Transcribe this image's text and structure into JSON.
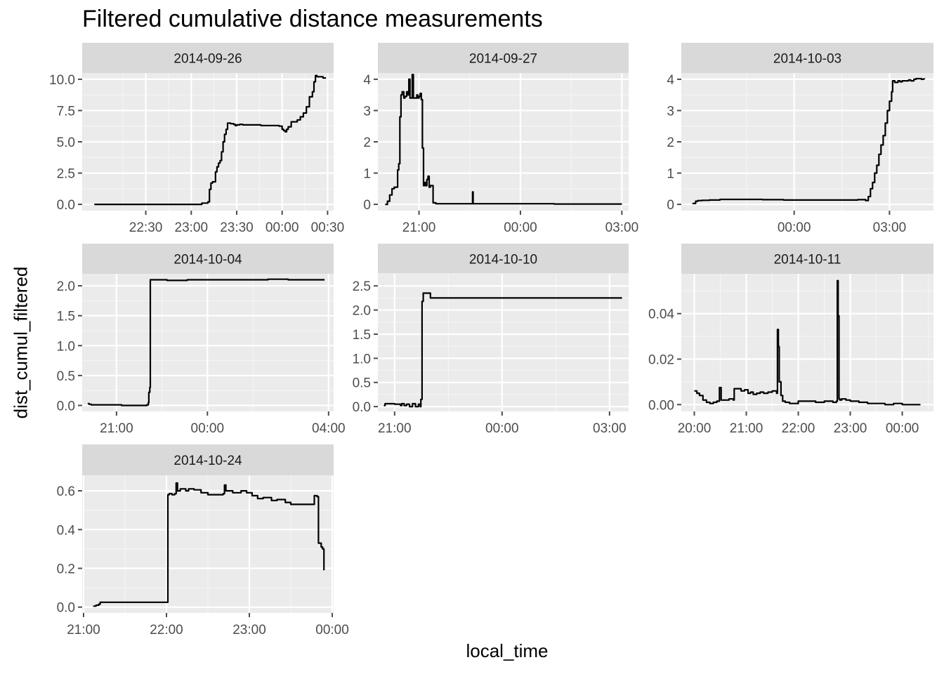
{
  "title": "Filtered cumulative distance measurements",
  "xlabel": "local_time",
  "ylabel": "dist_cumul_filtered",
  "colors": {
    "panel_bg": "#ebebeb",
    "strip_bg": "#d9d9d9",
    "grid_major": "#ffffff",
    "grid_minor": "#f5f5f5",
    "line": "#000000",
    "tick": "#4d4d4d"
  },
  "chart_data": [
    {
      "type": "line",
      "panel": "2014-09-26",
      "x_unit": "minutes since 00:00 of the facet day",
      "x_ticks": [
        {
          "v": 1350,
          "label": "22:30"
        },
        {
          "v": 1380,
          "label": "23:00"
        },
        {
          "v": 1410,
          "label": "23:30"
        },
        {
          "v": 1440,
          "label": "00:00"
        },
        {
          "v": 1470,
          "label": "00:30"
        }
      ],
      "y_ticks": [
        {
          "v": 0,
          "label": "0.0"
        },
        {
          "v": 2.5,
          "label": "2.5"
        },
        {
          "v": 5,
          "label": "5.0"
        },
        {
          "v": 7.5,
          "label": "7.5"
        },
        {
          "v": 10,
          "label": "10.0"
        }
      ],
      "xlim": [
        1308,
        1474
      ],
      "ylim": [
        -0.5,
        10.5
      ],
      "x": [
        1316,
        1382,
        1387,
        1391,
        1392,
        1393,
        1394,
        1396,
        1397,
        1398,
        1399,
        1400,
        1401,
        1402,
        1403,
        1404,
        1405,
        1406,
        1407,
        1408,
        1409,
        1410,
        1412,
        1414,
        1418,
        1422,
        1426,
        1430,
        1434,
        1438,
        1440,
        1441,
        1442,
        1443,
        1444,
        1445,
        1446,
        1448,
        1450,
        1452,
        1454,
        1456,
        1458,
        1460,
        1461,
        1462,
        1463,
        1465,
        1467,
        1469
      ],
      "y": [
        0.0,
        0.0,
        0.1,
        0.2,
        1.2,
        1.7,
        1.8,
        2.6,
        3.0,
        3.3,
        3.5,
        4.2,
        5.0,
        5.6,
        6.0,
        6.5,
        6.5,
        6.45,
        6.45,
        6.4,
        6.3,
        6.35,
        6.4,
        6.35,
        6.35,
        6.35,
        6.3,
        6.3,
        6.3,
        6.25,
        6.0,
        5.9,
        5.8,
        6.0,
        6.2,
        6.2,
        6.6,
        6.6,
        6.75,
        7.0,
        7.3,
        7.8,
        8.6,
        9.0,
        9.8,
        10.3,
        10.2,
        10.2,
        10.1,
        10.1
      ]
    },
    {
      "type": "line",
      "panel": "2014-09-27",
      "x_unit": "minutes since 00:00 of the facet day",
      "x_ticks": [
        {
          "v": 1260,
          "label": "21:00"
        },
        {
          "v": 1440,
          "label": "00:00"
        },
        {
          "v": 1620,
          "label": "03:00"
        }
      ],
      "y_ticks": [
        {
          "v": 0,
          "label": "0"
        },
        {
          "v": 1,
          "label": "1"
        },
        {
          "v": 2,
          "label": "2"
        },
        {
          "v": 3,
          "label": "3"
        },
        {
          "v": 4,
          "label": "4"
        }
      ],
      "xlim": [
        1187,
        1632
      ],
      "ylim": [
        -0.2,
        4.2
      ],
      "x": [
        1200,
        1204,
        1208,
        1212,
        1216,
        1220,
        1222,
        1224,
        1226,
        1228,
        1230,
        1233,
        1235,
        1238,
        1240,
        1242,
        1244,
        1246,
        1248,
        1250,
        1253,
        1256,
        1258,
        1260,
        1262,
        1264,
        1266,
        1268,
        1270,
        1272,
        1274,
        1276,
        1278,
        1280,
        1285,
        1290,
        1320,
        1354,
        1355,
        1356,
        1400,
        1500,
        1620
      ],
      "y": [
        0.0,
        0.1,
        0.3,
        0.5,
        0.55,
        0.55,
        1.1,
        1.3,
        2.8,
        3.5,
        3.6,
        3.4,
        3.45,
        3.6,
        3.5,
        4.0,
        3.4,
        3.4,
        4.15,
        3.4,
        3.4,
        3.5,
        3.4,
        3.45,
        3.55,
        3.35,
        1.8,
        0.6,
        0.7,
        0.6,
        0.8,
        0.9,
        0.55,
        0.6,
        0.05,
        0.02,
        0.02,
        0.02,
        0.4,
        0.02,
        0.02,
        0.01,
        0.01
      ]
    },
    {
      "type": "line",
      "panel": "2014-10-03",
      "x_unit": "minutes since 00:00 of the facet day",
      "x_ticks": [
        {
          "v": 1440,
          "label": "00:00"
        },
        {
          "v": 1620,
          "label": "03:00"
        }
      ],
      "y_ticks": [
        {
          "v": 0,
          "label": "0"
        },
        {
          "v": 1,
          "label": "1"
        },
        {
          "v": 2,
          "label": "2"
        },
        {
          "v": 3,
          "label": "3"
        },
        {
          "v": 4,
          "label": "4"
        }
      ],
      "xlim": [
        1227,
        1703
      ],
      "ylim": [
        -0.2,
        4.2
      ],
      "x": [
        1248,
        1254,
        1258,
        1262,
        1266,
        1270,
        1280,
        1300,
        1320,
        1340,
        1380,
        1420,
        1460,
        1500,
        1540,
        1560,
        1570,
        1575,
        1580,
        1584,
        1588,
        1592,
        1596,
        1600,
        1604,
        1608,
        1612,
        1616,
        1620,
        1624,
        1626,
        1630,
        1636,
        1640,
        1644,
        1650,
        1656,
        1660,
        1666,
        1670,
        1675,
        1680,
        1684,
        1686
      ],
      "y": [
        0.03,
        0.1,
        0.12,
        0.12,
        0.13,
        0.13,
        0.14,
        0.16,
        0.16,
        0.16,
        0.15,
        0.14,
        0.14,
        0.14,
        0.14,
        0.15,
        0.15,
        0.12,
        0.25,
        0.5,
        0.7,
        1.0,
        1.25,
        1.6,
        1.9,
        2.2,
        2.6,
        3.0,
        3.3,
        3.6,
        3.95,
        3.9,
        3.95,
        3.92,
        3.95,
        3.95,
        3.98,
        3.95,
        4.0,
        4.02,
        4.02,
        4.0,
        4.01,
        4.0
      ]
    },
    {
      "type": "line",
      "panel": "2014-10-04",
      "x_unit": "minutes since 00:00 of the facet day",
      "x_ticks": [
        {
          "v": 1260,
          "label": "21:00"
        },
        {
          "v": 1440,
          "label": "00:00"
        },
        {
          "v": 1680,
          "label": "04:00"
        }
      ],
      "y_ticks": [
        {
          "v": 0,
          "label": "0.0"
        },
        {
          "v": 0.5,
          "label": "0.5"
        },
        {
          "v": 1,
          "label": "1.0"
        },
        {
          "v": 1.5,
          "label": "1.5"
        },
        {
          "v": 2,
          "label": "2.0"
        }
      ],
      "xlim": [
        1192,
        1690
      ],
      "ylim": [
        -0.1,
        2.2
      ],
      "x": [
        1203,
        1206,
        1210,
        1216,
        1230,
        1270,
        1300,
        1320,
        1323,
        1324,
        1326,
        1327,
        1332,
        1360,
        1400,
        1440,
        1480,
        1520,
        1560,
        1600,
        1640,
        1672
      ],
      "y": [
        0.03,
        0.02,
        0.01,
        0.01,
        0.01,
        0.0,
        0.0,
        0.01,
        0.05,
        0.22,
        0.3,
        2.1,
        2.1,
        2.09,
        2.1,
        2.1,
        2.1,
        2.1,
        2.11,
        2.1,
        2.1,
        2.1
      ]
    },
    {
      "type": "line",
      "panel": "2014-10-10",
      "x_unit": "minutes since 00:00 of the facet day",
      "x_ticks": [
        {
          "v": 1260,
          "label": "21:00"
        },
        {
          "v": 1440,
          "label": "00:00"
        },
        {
          "v": 1620,
          "label": "03:00"
        }
      ],
      "y_ticks": [
        {
          "v": 0,
          "label": "0.0"
        },
        {
          "v": 0.5,
          "label": "0.5"
        },
        {
          "v": 1,
          "label": "1.0"
        },
        {
          "v": 1.5,
          "label": "1.5"
        },
        {
          "v": 2,
          "label": "2.0"
        },
        {
          "v": 2.5,
          "label": "2.5"
        }
      ],
      "xlim": [
        1232,
        1652
      ],
      "ylim": [
        -0.1,
        2.75
      ],
      "x": [
        1242,
        1244,
        1250,
        1260,
        1266,
        1270,
        1272,
        1276,
        1280,
        1285,
        1290,
        1295,
        1300,
        1303,
        1304,
        1306,
        1308,
        1320,
        1400,
        1500,
        1600,
        1640
      ],
      "y": [
        0.02,
        0.06,
        0.06,
        0.05,
        0.05,
        0.02,
        0.06,
        0.02,
        0.05,
        0.0,
        0.06,
        0.0,
        0.05,
        0.0,
        0.15,
        2.18,
        2.35,
        2.25,
        2.25,
        2.25,
        2.25,
        2.24
      ]
    },
    {
      "type": "line",
      "panel": "2014-10-11",
      "x_unit": "minutes since 00:00 of the facet day",
      "x_ticks": [
        {
          "v": 1200,
          "label": "20:00"
        },
        {
          "v": 1260,
          "label": "21:00"
        },
        {
          "v": 1320,
          "label": "22:00"
        },
        {
          "v": 1380,
          "label": "23:00"
        },
        {
          "v": 1440,
          "label": "00:00"
        }
      ],
      "y_ticks": [
        {
          "v": 0,
          "label": "0.00"
        },
        {
          "v": 0.02,
          "label": "0.02"
        },
        {
          "v": 0.04,
          "label": "0.04"
        }
      ],
      "xlim": [
        1185,
        1476
      ],
      "ylim": [
        -0.003,
        0.0575
      ],
      "x": [
        1200,
        1203,
        1206,
        1210,
        1214,
        1218,
        1222,
        1226,
        1228,
        1229,
        1231,
        1235,
        1240,
        1245,
        1246,
        1250,
        1254,
        1258,
        1262,
        1265,
        1268,
        1272,
        1276,
        1280,
        1285,
        1290,
        1295,
        1296,
        1297,
        1298,
        1300,
        1302,
        1305,
        1310,
        1320,
        1330,
        1340,
        1350,
        1360,
        1364,
        1365,
        1366,
        1367,
        1368,
        1370,
        1375,
        1380,
        1390,
        1400,
        1410,
        1420,
        1430,
        1440,
        1450,
        1461
      ],
      "y": [
        0.006,
        0.005,
        0.004,
        0.002,
        0.001,
        0.0005,
        0.001,
        0.0015,
        0.0015,
        0.0075,
        0.002,
        0.002,
        0.0025,
        0.002,
        0.007,
        0.007,
        0.006,
        0.0065,
        0.005,
        0.0055,
        0.0045,
        0.005,
        0.0055,
        0.005,
        0.0055,
        0.006,
        0.005,
        0.033,
        0.0255,
        0.01,
        0.004,
        0.0015,
        0.001,
        0.0005,
        0.0015,
        0.0015,
        0.001,
        0.0015,
        0.001,
        0.0015,
        0.0545,
        0.039,
        0.0025,
        0.002,
        0.0025,
        0.002,
        0.0015,
        0.001,
        0.0005,
        0.0005,
        0.0,
        0.0005,
        0.0,
        0.0,
        0.0
      ]
    },
    {
      "type": "line",
      "panel": "2014-10-24",
      "x_unit": "minutes since 00:00 of the facet day",
      "x_ticks": [
        {
          "v": 1260,
          "label": "21:00"
        },
        {
          "v": 1320,
          "label": "22:00"
        },
        {
          "v": 1380,
          "label": "23:00"
        },
        {
          "v": 1440,
          "label": "00:00"
        }
      ],
      "y_ticks": [
        {
          "v": 0,
          "label": "0.0"
        },
        {
          "v": 0.2,
          "label": "0.2"
        },
        {
          "v": 0.4,
          "label": "0.4"
        },
        {
          "v": 0.6,
          "label": "0.6"
        }
      ],
      "xlim": [
        1259,
        1441
      ],
      "ylim": [
        -0.03,
        0.68
      ],
      "x": [
        1267,
        1269,
        1271,
        1272,
        1274,
        1280,
        1300,
        1320,
        1321,
        1322,
        1324,
        1326,
        1327,
        1328,
        1330,
        1334,
        1336,
        1340,
        1345,
        1350,
        1355,
        1361,
        1362,
        1363,
        1368,
        1374,
        1378,
        1382,
        1386,
        1390,
        1396,
        1400,
        1406,
        1410,
        1420,
        1426,
        1427,
        1429,
        1430,
        1432,
        1433,
        1434
      ],
      "y": [
        0.005,
        0.01,
        0.015,
        0.025,
        0.025,
        0.025,
        0.025,
        0.025,
        0.58,
        0.585,
        0.58,
        0.585,
        0.64,
        0.6,
        0.61,
        0.6,
        0.61,
        0.605,
        0.59,
        0.58,
        0.58,
        0.585,
        0.63,
        0.6,
        0.59,
        0.6,
        0.59,
        0.575,
        0.56,
        0.565,
        0.55,
        0.555,
        0.54,
        0.53,
        0.53,
        0.53,
        0.575,
        0.57,
        0.33,
        0.31,
        0.3,
        0.19
      ]
    }
  ]
}
